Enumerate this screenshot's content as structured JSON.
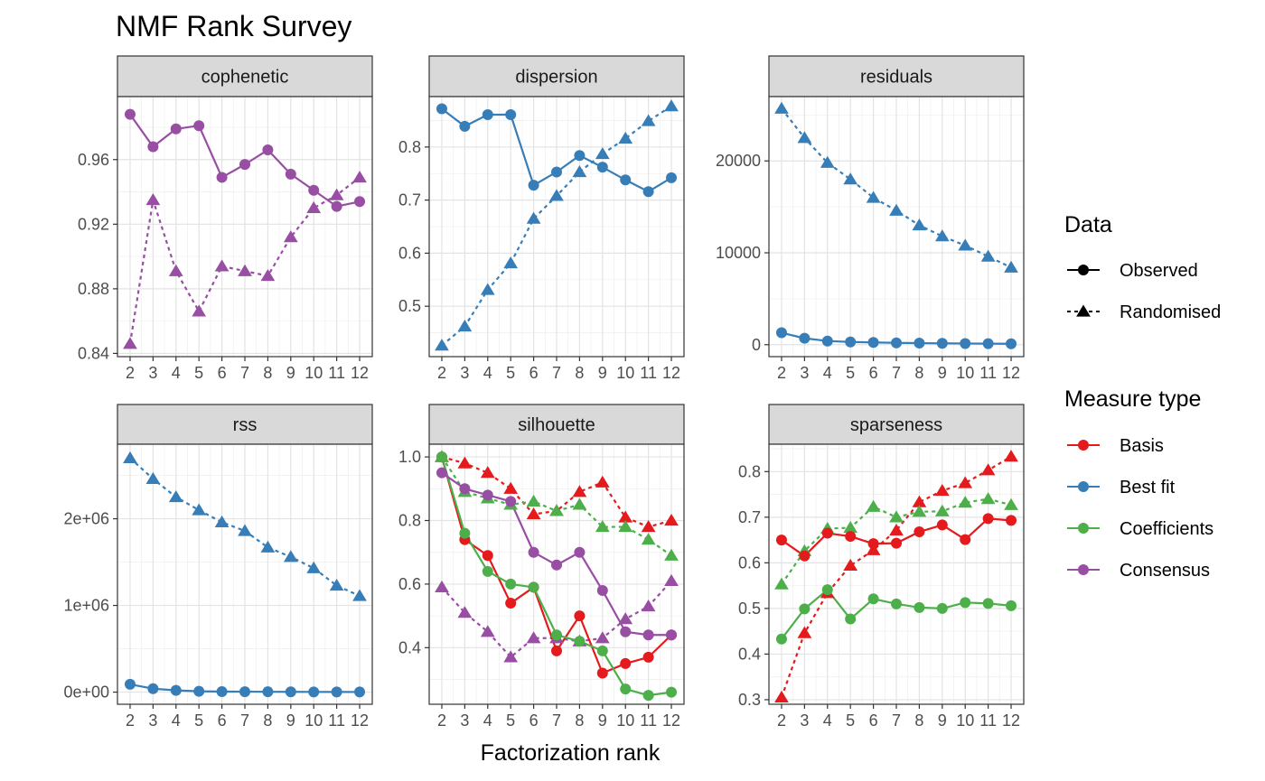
{
  "chart_data": {
    "type": "line",
    "title": "NMF Rank Survey",
    "xlabel": "Factorization rank",
    "x": [
      2,
      3,
      4,
      5,
      6,
      7,
      8,
      9,
      10,
      11,
      12
    ],
    "grid": true,
    "legend_position": "right",
    "legends": {
      "data": {
        "title": "Data",
        "entries": [
          {
            "label": "Observed",
            "linetype": "solid",
            "shape": "circle"
          },
          {
            "label": "Randomised",
            "linetype": "dashed",
            "shape": "triangle"
          }
        ]
      },
      "measure_type": {
        "title": "Measure type",
        "entries": [
          {
            "label": "Basis",
            "color": "#E41A1C"
          },
          {
            "label": "Best fit",
            "color": "#377EB8"
          },
          {
            "label": "Coefficients",
            "color": "#4DAF4A"
          },
          {
            "label": "Consensus",
            "color": "#984EA3"
          }
        ]
      }
    },
    "panels": [
      {
        "strip": "cophenetic",
        "ylim": [
          0.838,
          0.999
        ],
        "yticks": [
          0.84,
          0.88,
          0.92,
          0.96
        ],
        "ytick_labels": [
          "0.84",
          "0.88",
          "0.92",
          "0.96"
        ],
        "series": [
          {
            "measure": "Consensus",
            "data": "Observed",
            "values": [
              0.988,
              0.968,
              0.979,
              0.981,
              0.949,
              0.957,
              0.966,
              0.951,
              0.941,
              0.931,
              0.934
            ]
          },
          {
            "measure": "Consensus",
            "data": "Randomised",
            "values": [
              0.846,
              0.935,
              0.891,
              0.866,
              0.894,
              0.891,
              0.888,
              0.912,
              0.93,
              0.938,
              0.949
            ]
          }
        ]
      },
      {
        "strip": "dispersion",
        "ylim": [
          0.405,
          0.895
        ],
        "yticks": [
          0.5,
          0.6,
          0.7,
          0.8
        ],
        "ytick_labels": [
          "0.5",
          "0.6",
          "0.7",
          "0.8"
        ],
        "series": [
          {
            "measure": "Best fit",
            "data": "Observed",
            "values": [
              0.872,
              0.839,
              0.861,
              0.861,
              0.728,
              0.753,
              0.784,
              0.762,
              0.738,
              0.716,
              0.742
            ]
          },
          {
            "measure": "Best fit",
            "data": "Randomised",
            "values": [
              0.426,
              0.462,
              0.531,
              0.581,
              0.665,
              0.708,
              0.753,
              0.787,
              0.816,
              0.849,
              0.877
            ]
          }
        ]
      },
      {
        "strip": "residuals",
        "ylim": [
          -1300,
          27000
        ],
        "yticks": [
          0,
          10000,
          20000
        ],
        "ytick_labels": [
          "0",
          "10000",
          "20000"
        ],
        "series": [
          {
            "measure": "Best fit",
            "data": "Observed",
            "values": [
              1300,
              700,
              400,
              300,
              250,
              200,
              170,
              150,
              130,
              110,
              100
            ]
          },
          {
            "measure": "Best fit",
            "data": "Randomised",
            "values": [
              25700,
              22500,
              19800,
              18000,
              16000,
              14600,
              13000,
              11800,
              10800,
              9600,
              8400
            ]
          }
        ]
      },
      {
        "strip": "rss",
        "ylim": [
          -140000,
          2860000
        ],
        "yticks": [
          0,
          1000000,
          2000000
        ],
        "ytick_labels": [
          "0e+00",
          "1e+06",
          "2e+06"
        ],
        "series": [
          {
            "measure": "Best fit",
            "data": "Observed",
            "values": [
              90000,
              40000,
              20000,
              10000,
              6000,
              5000,
              4000,
              3000,
              2500,
              2000,
              1500
            ]
          },
          {
            "measure": "Best fit",
            "data": "Randomised",
            "values": [
              2700000,
              2460000,
              2250000,
              2100000,
              1960000,
              1860000,
              1670000,
              1560000,
              1430000,
              1230000,
              1110000
            ]
          }
        ]
      },
      {
        "strip": "silhouette",
        "ylim": [
          0.222,
          1.04
        ],
        "yticks": [
          0.4,
          0.6,
          0.8,
          1.0
        ],
        "ytick_labels": [
          "0.4",
          "0.6",
          "0.8",
          "1.0"
        ],
        "series": [
          {
            "measure": "Basis",
            "data": "Observed",
            "values": [
              1.0,
              0.74,
              0.69,
              0.54,
              0.59,
              0.39,
              0.5,
              0.32,
              0.35,
              0.37,
              0.44
            ]
          },
          {
            "measure": "Basis",
            "data": "Randomised",
            "values": [
              1.0,
              0.98,
              0.95,
              0.9,
              0.82,
              0.83,
              0.89,
              0.92,
              0.81,
              0.78,
              0.8
            ]
          },
          {
            "measure": "Coefficients",
            "data": "Observed",
            "values": [
              1.0,
              0.76,
              0.64,
              0.6,
              0.59,
              0.44,
              0.42,
              0.39,
              0.27,
              0.25,
              0.26
            ]
          },
          {
            "measure": "Coefficients",
            "data": "Randomised",
            "values": [
              1.0,
              0.89,
              0.87,
              0.85,
              0.86,
              0.83,
              0.85,
              0.78,
              0.78,
              0.74,
              0.69
            ]
          },
          {
            "measure": "Consensus",
            "data": "Observed",
            "values": [
              0.95,
              0.9,
              0.88,
              0.86,
              0.7,
              0.66,
              0.7,
              0.58,
              0.45,
              0.44,
              0.44
            ]
          },
          {
            "measure": "Consensus",
            "data": "Randomised",
            "values": [
              0.59,
              0.51,
              0.45,
              0.37,
              0.43,
              0.43,
              0.42,
              0.43,
              0.49,
              0.53,
              0.61
            ]
          }
        ]
      },
      {
        "strip": "sparseness",
        "ylim": [
          0.29,
          0.86
        ],
        "yticks": [
          0.3,
          0.4,
          0.5,
          0.6,
          0.7,
          0.8
        ],
        "ytick_labels": [
          "0.3",
          "0.4",
          "0.5",
          "0.6",
          "0.7",
          "0.8"
        ],
        "series": [
          {
            "measure": "Basis",
            "data": "Observed",
            "values": [
              0.65,
              0.615,
              0.665,
              0.658,
              0.642,
              0.643,
              0.668,
              0.683,
              0.651,
              0.697,
              0.693
            ]
          },
          {
            "measure": "Basis",
            "data": "Randomised",
            "values": [
              0.305,
              0.446,
              0.534,
              0.594,
              0.628,
              0.671,
              0.733,
              0.758,
              0.775,
              0.803,
              0.833
            ]
          },
          {
            "measure": "Coefficients",
            "data": "Observed",
            "values": [
              0.433,
              0.499,
              0.541,
              0.477,
              0.521,
              0.51,
              0.502,
              0.5,
              0.513,
              0.511,
              0.506
            ]
          },
          {
            "measure": "Coefficients",
            "data": "Randomised",
            "values": [
              0.553,
              0.626,
              0.675,
              0.677,
              0.723,
              0.7,
              0.712,
              0.713,
              0.732,
              0.74,
              0.727
            ]
          }
        ]
      }
    ]
  }
}
